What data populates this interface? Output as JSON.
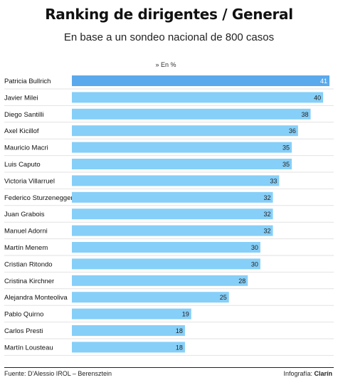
{
  "header": {
    "title": "Ranking de dirigentes / General",
    "subtitle": "En base a un sondeo nacional de 800 casos",
    "unit_note": "» En %"
  },
  "footer": {
    "source": "Fuente: D'Alessio IROL – Berensztein",
    "credit_label": "Infografía:",
    "credit_brand": "Clarín"
  },
  "colors": {
    "bar": "#86cff8",
    "bar_highlight": "#5aa9ec",
    "row_divider": "#e2e2e2"
  },
  "chart_data": {
    "type": "bar",
    "orientation": "horizontal",
    "title": "Ranking de dirigentes / General",
    "subtitle": "En base a un sondeo nacional de 800 casos",
    "unit": "» En %",
    "categories": [
      "Patricia Bullrich",
      "Javier Milei",
      "Diego Santilli",
      "Axel Kicillof",
      "Mauricio Macri",
      "Luis Caputo",
      "Victoria Villarruel",
      "Federico Sturzenegger",
      "Juan Grabois",
      "Manuel Adorni",
      "Martín Menem",
      "Cristian Ritondo",
      "Cristina Kirchner",
      "Alejandra Monteoliva",
      "Pablo Quirno",
      "Carlos Presti",
      "Martín Lousteau"
    ],
    "values": [
      41,
      40,
      38,
      36,
      35,
      35,
      33,
      32,
      32,
      32,
      30,
      30,
      28,
      25,
      19,
      18,
      18
    ],
    "xlim": [
      0,
      41
    ],
    "highlight_index": 0,
    "grid": false,
    "legend": "none"
  }
}
